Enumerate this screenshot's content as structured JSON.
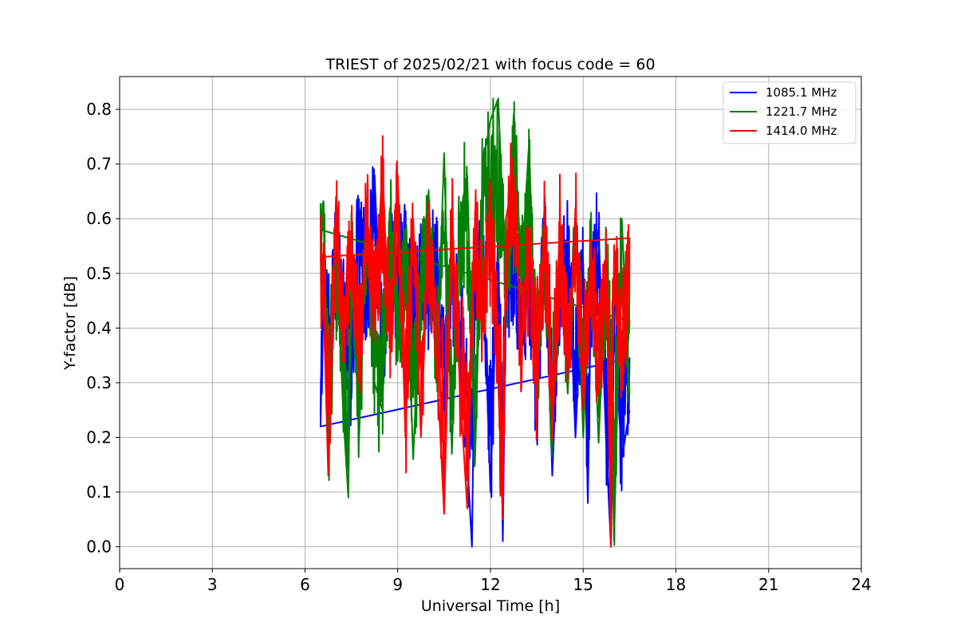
{
  "chart_data": {
    "type": "line",
    "title": "TRIEST of 2025/02/21 with focus code = 60",
    "xlabel": "Universal Time [h]",
    "ylabel": "Y-factor [dB]",
    "xlim": [
      0,
      24
    ],
    "ylim": [
      -0.04,
      0.86
    ],
    "xticks": [
      0,
      3,
      6,
      9,
      12,
      15,
      18,
      21,
      24
    ],
    "xtick_labels": [
      "0",
      "3",
      "6",
      "9",
      "12",
      "15",
      "18",
      "21",
      "24"
    ],
    "yticks": [
      0.0,
      0.1,
      0.2,
      0.3,
      0.4,
      0.5,
      0.6,
      0.7,
      0.8
    ],
    "ytick_labels": [
      "0.0",
      "0.1",
      "0.2",
      "0.3",
      "0.4",
      "0.5",
      "0.6",
      "0.7",
      "0.8"
    ],
    "grid": true,
    "legend_position": "top-right",
    "series": [
      {
        "name": "1085.1 MHz",
        "color": "#0000ff",
        "x": [
          6.5,
          6.6,
          6.75,
          7.0,
          7.25,
          7.5,
          7.75,
          8.0,
          8.25,
          8.5,
          8.75,
          9.0,
          9.25,
          9.5,
          9.75,
          10.0,
          10.25,
          10.5,
          10.75,
          11.0,
          11.25,
          11.4,
          11.5,
          11.75,
          12.0,
          12.25,
          12.4,
          12.5,
          12.75,
          13.0,
          13.25,
          13.5,
          13.75,
          14.0,
          14.25,
          14.5,
          14.75,
          15.0,
          15.15,
          15.25,
          15.5,
          15.75,
          15.9,
          16.0,
          16.25,
          16.5
        ],
        "y": [
          0.22,
          0.5,
          0.36,
          0.55,
          0.42,
          0.3,
          0.62,
          0.45,
          0.68,
          0.33,
          0.55,
          0.48,
          0.6,
          0.36,
          0.52,
          0.44,
          0.58,
          0.25,
          0.5,
          0.4,
          0.16,
          0.0,
          0.45,
          0.54,
          0.1,
          0.58,
          0.01,
          0.47,
          0.55,
          0.38,
          0.5,
          0.26,
          0.58,
          0.13,
          0.48,
          0.56,
          0.2,
          0.52,
          0.08,
          0.45,
          0.58,
          0.18,
          0.0,
          0.4,
          0.16,
          0.25
        ]
      },
      {
        "name": "1221.7 MHz",
        "color": "#008000",
        "x": [
          6.5,
          6.6,
          6.75,
          7.0,
          7.25,
          7.4,
          7.5,
          7.75,
          8.0,
          8.25,
          8.5,
          8.75,
          9.0,
          9.25,
          9.5,
          9.75,
          10.0,
          10.25,
          10.5,
          10.75,
          11.0,
          11.25,
          11.5,
          11.75,
          12.0,
          12.25,
          12.5,
          12.75,
          13.0,
          13.25,
          13.5,
          13.75,
          14.0,
          14.25,
          14.5,
          14.75,
          15.0,
          15.25,
          15.5,
          15.75,
          15.9,
          16.0,
          16.25,
          16.5
        ],
        "y": [
          0.58,
          0.61,
          0.14,
          0.55,
          0.23,
          0.09,
          0.55,
          0.2,
          0.63,
          0.3,
          0.25,
          0.62,
          0.35,
          0.58,
          0.16,
          0.5,
          0.65,
          0.3,
          0.72,
          0.17,
          0.6,
          0.68,
          0.15,
          0.7,
          0.78,
          0.82,
          0.48,
          0.79,
          0.5,
          0.74,
          0.28,
          0.58,
          0.2,
          0.55,
          0.28,
          0.6,
          0.2,
          0.57,
          0.19,
          0.52,
          0.3,
          0.01,
          0.6,
          0.28
        ]
      },
      {
        "name": "1414.0 MHz",
        "color": "#ff0000",
        "x": [
          6.5,
          6.6,
          6.75,
          7.0,
          7.25,
          7.5,
          7.75,
          8.0,
          8.25,
          8.5,
          8.75,
          9.0,
          9.25,
          9.5,
          9.75,
          10.0,
          10.25,
          10.5,
          10.75,
          11.0,
          11.25,
          11.5,
          11.75,
          12.0,
          12.25,
          12.4,
          12.5,
          12.75,
          13.0,
          13.25,
          13.5,
          13.75,
          14.0,
          14.25,
          14.5,
          14.75,
          15.0,
          15.25,
          15.5,
          15.75,
          15.9,
          16.0,
          16.25,
          16.5
        ],
        "y": [
          0.53,
          0.44,
          0.13,
          0.64,
          0.35,
          0.58,
          0.3,
          0.62,
          0.4,
          0.7,
          0.36,
          0.68,
          0.2,
          0.6,
          0.2,
          0.58,
          0.35,
          0.06,
          0.62,
          0.3,
          0.07,
          0.6,
          0.4,
          0.66,
          0.3,
          0.05,
          0.6,
          0.68,
          0.35,
          0.58,
          0.25,
          0.62,
          0.21,
          0.6,
          0.3,
          0.62,
          0.25,
          0.56,
          0.28,
          0.5,
          0.0,
          0.55,
          0.3,
          0.53
        ]
      }
    ]
  }
}
